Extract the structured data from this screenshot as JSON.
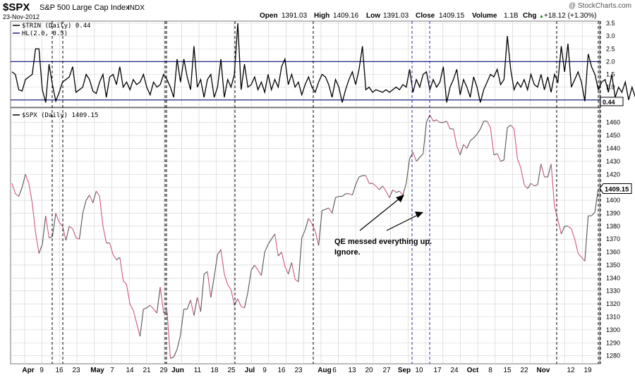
{
  "header": {
    "symbol": "$SPX",
    "name": "S&P 500 Large Cap Index",
    "exchange": "INDX",
    "date": "23-Nov-2012",
    "watermark": "@ StockCharts.com",
    "open_label": "Open",
    "open": "1391.03",
    "high_label": "High",
    "high": "1409.16",
    "low_label": "Low",
    "low": "1391.03",
    "close_label": "Close",
    "close": "1409.15",
    "volume_label": "Volume",
    "volume": "1.1B",
    "chg_label": "Chg",
    "chg": "+18.12 (+1.30%)",
    "chg_arrow": "▲"
  },
  "colors": {
    "up": "#555555",
    "down": "#d0587a",
    "trin": "#000000",
    "band": "#1a237e",
    "grid": "#cfcfcf",
    "blue_marker": "#2b2bb5",
    "legend_square": "#000000"
  },
  "annotation": {
    "line1": "QE messed everything up.",
    "line2": "Ignore."
  },
  "chart_data": [
    {
      "type": "line",
      "title": "$TRIN (Daily) 0.44",
      "legend": [
        "$TRIN (Daily) 0.44",
        "HL(2.0, 0.5)"
      ],
      "ylim": [
        0.3,
        3.5
      ],
      "yticks": [
        0.5,
        1.0,
        1.5,
        2.0,
        2.5,
        3.0,
        3.5
      ],
      "ytick_labels": [
        "0.5",
        "1.0",
        "1.5",
        "2.0",
        "2.5",
        "3.0",
        "3.5"
      ],
      "hlines": [
        2.0,
        0.5
      ],
      "last_value_label": "0.44",
      "series": [
        {
          "name": "$TRIN (Daily)",
          "values": [
            1.6,
            1.5,
            0.9,
            0.85,
            1.3,
            1.4,
            1.5,
            2.5,
            2.5,
            0.9,
            0.4,
            1.9,
            1.1,
            0.45,
            0.8,
            1.2,
            1.3,
            1.4,
            1.8,
            0.8,
            0.9,
            1.0,
            1.5,
            1.3,
            0.85,
            0.75,
            1.2,
            1.5,
            0.6,
            1.4,
            1.5,
            1.1,
            1.8,
            1.0,
            1.2,
            0.9,
            1.3,
            1.1,
            1.2,
            1.5,
            1.0,
            0.7,
            1.2,
            1.0,
            1.1,
            1.5,
            1.3,
            1.0,
            0.6,
            2.1,
            1.2,
            2.1,
            1.4,
            0.9,
            2.6,
            1.0,
            1.3,
            0.6,
            1.3,
            1.5,
            0.6,
            1.0,
            2.1,
            0.6,
            1.3,
            1.0,
            1.5,
            3.5,
            0.9,
            1.9,
            1.0,
            1.1,
            1.4,
            0.9,
            1.2,
            0.8,
            1.5,
            0.9,
            1.3,
            1.0,
            1.8,
            2.1,
            1.1,
            1.5,
            1.0,
            1.2,
            0.7,
            1.1,
            1.4,
            1.0,
            0.8,
            1.2,
            1.5,
            1.4,
            1.1,
            0.6,
            1.3,
            1.0,
            0.4,
            0.9,
            1.3,
            1.6,
            1.1,
            1.7,
            2.6,
            0.9,
            1.0,
            0.8,
            0.9,
            0.85,
            0.8,
            0.9,
            0.8,
            0.9,
            1.0,
            0.9,
            1.1,
            1.0,
            1.7,
            0.8,
            1.3,
            1.0,
            1.5,
            1.6,
            0.9,
            1.3,
            1.0,
            1.2,
            1.8,
            0.4,
            1.0,
            1.3,
            1.7,
            0.7,
            1.3,
            1.0,
            0.6,
            1.4,
            1.0,
            0.4,
            0.9,
            1.2,
            1.5,
            1.4,
            1.7,
            1.1,
            1.3,
            3.0,
            1.7,
            0.9,
            1.2,
            1.0,
            1.3,
            0.9,
            1.5,
            1.1,
            1.0,
            1.5,
            0.9,
            1.4,
            0.8,
            1.5,
            1.2,
            2.6,
            1.6,
            2.7,
            1.0,
            1.3,
            1.6,
            1.2,
            0.45,
            2.3,
            1.8,
            1.5,
            0.9,
            1.2,
            1.3,
            0.8,
            1.5,
            0.6,
            1.0,
            0.8,
            1.2,
            0.5,
            1.0,
            0.6,
            1.4,
            0.44
          ]
        }
      ]
    },
    {
      "type": "line",
      "title": "$SPX (Daily) 1409.15",
      "legend": [
        "$SPX (Daily) 1409.15"
      ],
      "ylim": [
        1276,
        1468
      ],
      "yticks": [
        1280,
        1290,
        1300,
        1310,
        1320,
        1330,
        1340,
        1350,
        1360,
        1370,
        1380,
        1390,
        1400,
        1410,
        1420,
        1430,
        1440,
        1450,
        1460
      ],
      "last_value_label": "1409.15",
      "series": [
        {
          "name": "$SPX (Daily)",
          "values": [
            1413,
            1405,
            1403,
            1410,
            1420,
            1413,
            1398,
            1375,
            1359,
            1366,
            1388,
            1371,
            1372,
            1390,
            1383,
            1380,
            1369,
            1380,
            1378,
            1371,
            1370,
            1390,
            1400,
            1404,
            1398,
            1407,
            1403,
            1380,
            1367,
            1367,
            1358,
            1354,
            1356,
            1338,
            1335,
            1320,
            1315,
            1305,
            1295,
            1316,
            1317,
            1319,
            1316,
            1313,
            1333,
            1313,
            1315,
            1278,
            1279,
            1285,
            1296,
            1316,
            1316,
            1323,
            1311,
            1325,
            1314,
            1343,
            1345,
            1325,
            1341,
            1358,
            1362,
            1343,
            1335,
            1331,
            1319,
            1324,
            1318,
            1317,
            1329,
            1346,
            1350,
            1346,
            1342,
            1360,
            1366,
            1370,
            1374,
            1357,
            1360,
            1349,
            1343,
            1352,
            1339,
            1337,
            1371,
            1377,
            1386,
            1382,
            1376,
            1365,
            1392,
            1393,
            1394,
            1390,
            1402,
            1403,
            1403,
            1405,
            1405,
            1404,
            1412,
            1418,
            1419,
            1419,
            1413,
            1413,
            1411,
            1408,
            1411,
            1407,
            1402,
            1408,
            1406,
            1407,
            1404,
            1413,
            1432,
            1437,
            1430,
            1433,
            1436,
            1460,
            1466,
            1461,
            1462,
            1460,
            1460,
            1461,
            1455,
            1455,
            1442,
            1435,
            1443,
            1440,
            1446,
            1448,
            1451,
            1455,
            1461,
            1461,
            1456,
            1435,
            1436,
            1430,
            1431,
            1456,
            1458,
            1455,
            1432,
            1425,
            1412,
            1409,
            1413,
            1411,
            1412,
            1428,
            1418,
            1418,
            1428,
            1395,
            1385,
            1374,
            1380,
            1380,
            1378,
            1370,
            1359,
            1356,
            1353,
            1388,
            1388,
            1391,
            1409
          ]
        }
      ],
      "series_notes": "segments drawn gray when close rises vs previous, pink when it falls"
    }
  ],
  "xaxis": {
    "labels": [
      {
        "text": "Apr",
        "bold": true
      },
      {
        "text": "9"
      },
      {
        "text": "16"
      },
      {
        "text": "23"
      },
      {
        "text": "May",
        "bold": true
      },
      {
        "text": "7"
      },
      {
        "text": "14"
      },
      {
        "text": "21"
      },
      {
        "text": "29"
      },
      {
        "text": "Jun",
        "bold": true
      },
      {
        "text": "11"
      },
      {
        "text": "18"
      },
      {
        "text": "25"
      },
      {
        "text": "Jul",
        "bold": true
      },
      {
        "text": "9"
      },
      {
        "text": "16"
      },
      {
        "text": "23"
      },
      {
        "text": "Aug",
        "bold": true
      },
      {
        "text": "6"
      },
      {
        "text": "13"
      },
      {
        "text": "20"
      },
      {
        "text": "27"
      },
      {
        "text": "Sep",
        "bold": true
      },
      {
        "text": "10"
      },
      {
        "text": "17"
      },
      {
        "text": "24"
      },
      {
        "text": "Oct",
        "bold": true
      },
      {
        "text": "8"
      },
      {
        "text": "15"
      },
      {
        "text": "22"
      },
      {
        "text": "Nov",
        "bold": true
      },
      {
        "text": "12"
      },
      {
        "text": "19"
      }
    ]
  },
  "markers": {
    "black_dashed_count": 9,
    "blue_dashed_count": 2
  }
}
